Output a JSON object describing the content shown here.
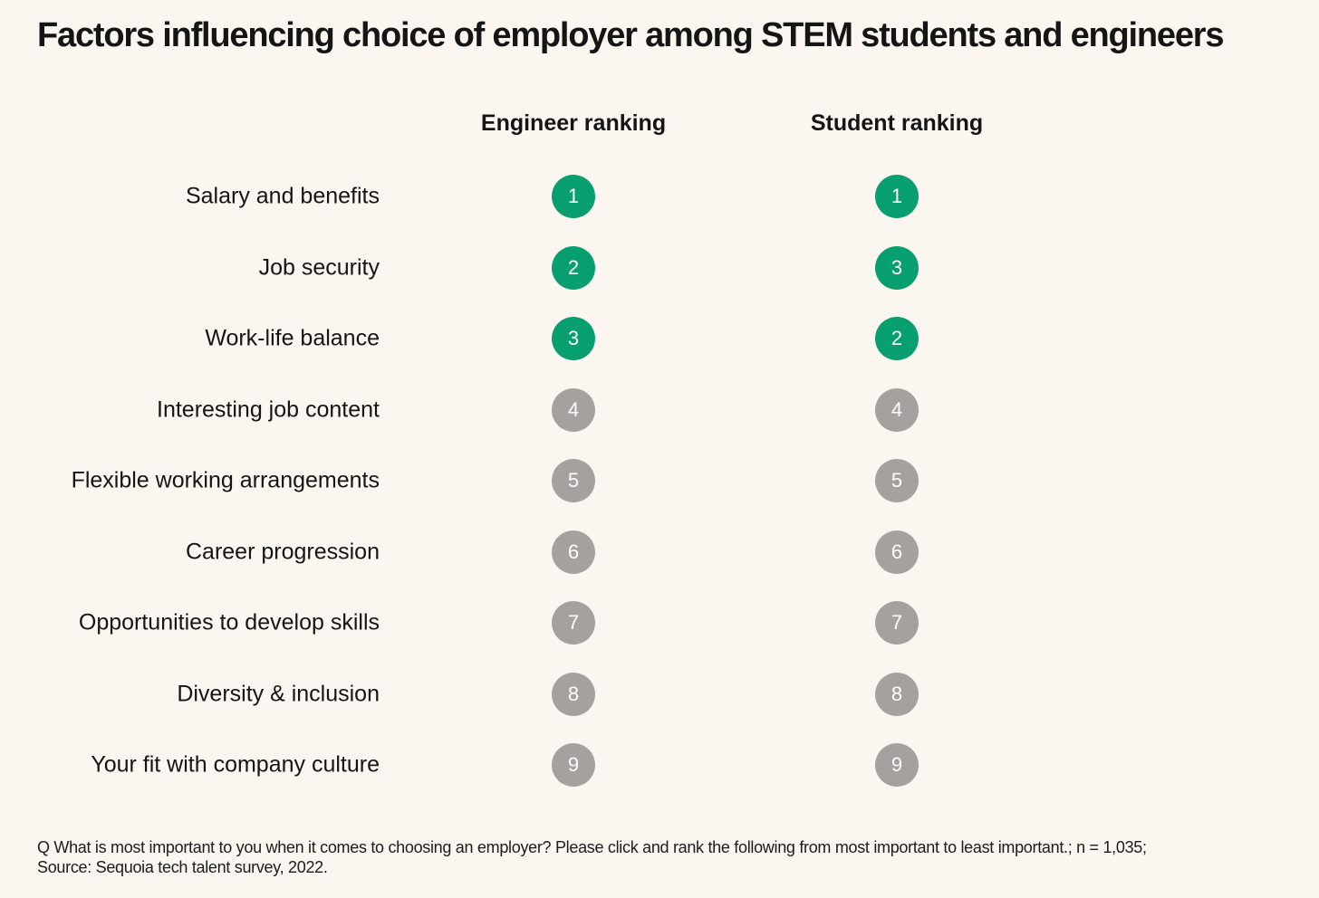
{
  "title": "Factors influencing choice of employer among STEM students and engineers",
  "colors": {
    "top3": "#079f6f",
    "rest": "#a6a19e"
  },
  "chart_data": {
    "type": "table",
    "columns": [
      "Engineer ranking",
      "Student ranking"
    ],
    "rows": [
      {
        "factor": "Salary and benefits",
        "engineer": 1,
        "student": 1
      },
      {
        "factor": "Job security",
        "engineer": 2,
        "student": 3
      },
      {
        "factor": "Work-life balance",
        "engineer": 3,
        "student": 2
      },
      {
        "factor": "Interesting job content",
        "engineer": 4,
        "student": 4
      },
      {
        "factor": "Flexible working arrangements",
        "engineer": 5,
        "student": 5
      },
      {
        "factor": "Career progression",
        "engineer": 6,
        "student": 6
      },
      {
        "factor": "Opportunities to develop skills",
        "engineer": 7,
        "student": 7
      },
      {
        "factor": "Diversity & inclusion",
        "engineer": 8,
        "student": 8
      },
      {
        "factor": "Your fit with company culture",
        "engineer": 9,
        "student": 9
      }
    ]
  },
  "footnote": {
    "question": "Q What is most important to you when it comes to choosing an employer? Please click and rank the following from most important to least important.; n = 1,035;",
    "source": "Source: Sequoia tech talent survey, 2022."
  }
}
